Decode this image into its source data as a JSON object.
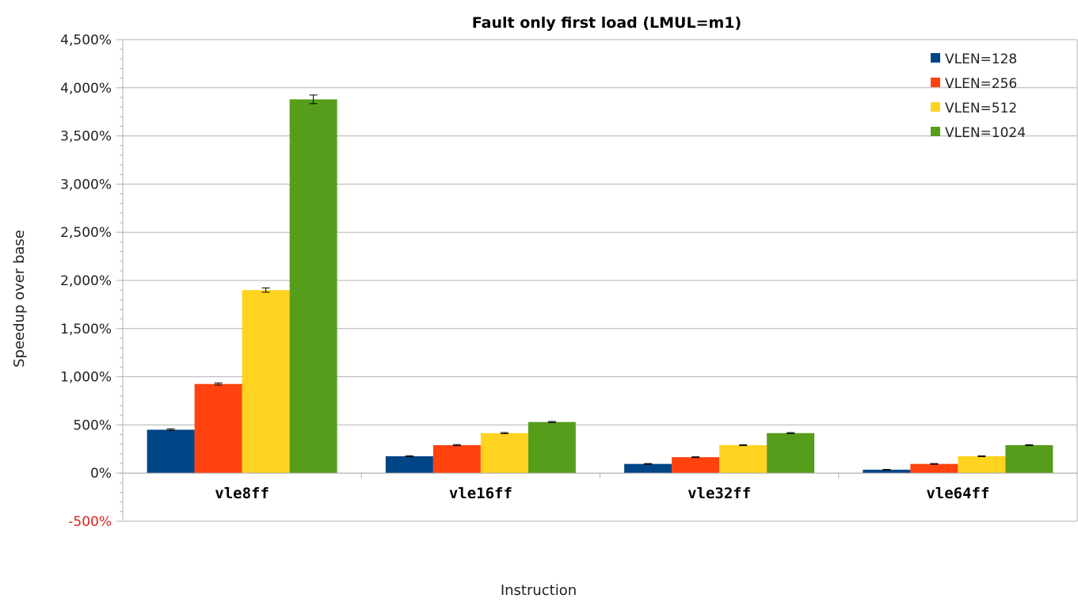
{
  "chart_data": {
    "type": "bar",
    "title": "Fault only first load (LMUL=m1)",
    "xlabel": "Instruction",
    "ylabel": "Speedup over base",
    "categories": [
      "vle8ff",
      "vle16ff",
      "vle32ff",
      "vle64ff"
    ],
    "series": [
      {
        "name": "VLEN=128",
        "color": "#004586",
        "values": [
          450,
          175,
          95,
          35
        ],
        "errors": [
          8,
          5,
          4,
          3
        ]
      },
      {
        "name": "VLEN=256",
        "color": "#ff420e",
        "values": [
          925,
          290,
          165,
          95
        ],
        "errors": [
          10,
          6,
          4,
          4
        ]
      },
      {
        "name": "VLEN=512",
        "color": "#ffd320",
        "values": [
          1900,
          415,
          290,
          175
        ],
        "errors": [
          22,
          6,
          5,
          4
        ]
      },
      {
        "name": "VLEN=1024",
        "color": "#579d1c",
        "values": [
          3880,
          530,
          415,
          290
        ],
        "errors": [
          45,
          6,
          5,
          4
        ]
      }
    ],
    "ylim": [
      -500,
      4500
    ],
    "yticks": [
      -500,
      0,
      500,
      1000,
      1500,
      2000,
      2500,
      3000,
      3500,
      4000,
      4500
    ],
    "ytick_labels": [
      "-500%",
      "0%",
      "500%",
      "1,000%",
      "1,500%",
      "2,000%",
      "2,500%",
      "3,000%",
      "3,500%",
      "4,000%",
      "4,500%"
    ],
    "negative_tick_color": "#e0201b",
    "grid": true,
    "error_bars": true,
    "legend_position": "top-right"
  }
}
